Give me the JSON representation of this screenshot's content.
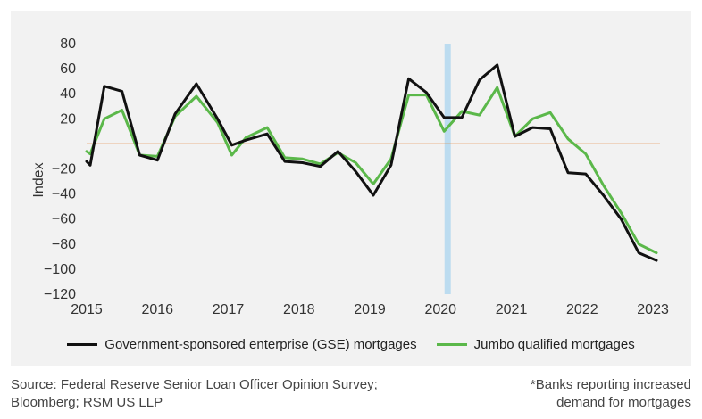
{
  "chart_data": {
    "type": "line",
    "ylabel": "Index",
    "xlabel": "",
    "xlim": [
      2015,
      2023.1
    ],
    "ylim": [
      -120,
      80
    ],
    "yticks": [
      80,
      60,
      40,
      20,
      -20,
      -40,
      -60,
      -80,
      -100,
      -120
    ],
    "xticks": [
      2015,
      2016,
      2017,
      2018,
      2019,
      2020,
      2021,
      2022,
      2023
    ],
    "reference_line": 0,
    "highlight": {
      "x": 2020.1
    },
    "series": [
      {
        "name": "Government-sponsored enterprise (GSE) mortgages",
        "color": "#111111",
        "x": [
          2015.0,
          2015.05,
          2015.25,
          2015.5,
          2015.75,
          2016.0,
          2016.25,
          2016.55,
          2016.85,
          2017.05,
          2017.25,
          2017.55,
          2017.8,
          2018.05,
          2018.3,
          2018.55,
          2018.8,
          2019.05,
          2019.3,
          2019.55,
          2019.8,
          2020.05,
          2020.3,
          2020.55,
          2020.8,
          2021.05,
          2021.3,
          2021.55,
          2021.8,
          2022.05,
          2022.3,
          2022.55,
          2022.8,
          2023.05
        ],
        "values": [
          -14,
          -17,
          46,
          42,
          -9,
          -13,
          24,
          48,
          20,
          -1,
          3,
          8,
          -14,
          -15,
          -18,
          -6,
          -22,
          -41,
          -17,
          52,
          41,
          21,
          21,
          51,
          63,
          6,
          13,
          12,
          -23,
          -24,
          -41,
          -60,
          -87,
          -93
        ]
      },
      {
        "name": "Jumbo qualified mortgages",
        "color": "#5bb84a",
        "x": [
          2015.0,
          2015.05,
          2015.25,
          2015.5,
          2015.75,
          2016.0,
          2016.25,
          2016.55,
          2016.85,
          2017.05,
          2017.25,
          2017.55,
          2017.8,
          2018.05,
          2018.3,
          2018.55,
          2018.8,
          2019.05,
          2019.3,
          2019.55,
          2019.8,
          2020.05,
          2020.3,
          2020.55,
          2020.8,
          2021.05,
          2021.3,
          2021.55,
          2021.8,
          2022.05,
          2022.3,
          2022.55,
          2022.8,
          2023.05
        ],
        "values": [
          -6,
          -8,
          20,
          27,
          -9,
          -10,
          22,
          38,
          17,
          -9,
          5,
          13,
          -11,
          -12,
          -16,
          -7,
          -15,
          -32,
          -12,
          39,
          39,
          10,
          26,
          23,
          45,
          6,
          20,
          25,
          4,
          -8,
          -33,
          -55,
          -80,
          -87
        ]
      }
    ]
  },
  "footer": {
    "source_line1": "Source: Federal Reserve Senior Loan Officer Opinion Survey;",
    "source_line2": "Bloomberg; RSM US LLP",
    "note_line1": "*Banks reporting increased",
    "note_line2": "demand for mortgages"
  }
}
